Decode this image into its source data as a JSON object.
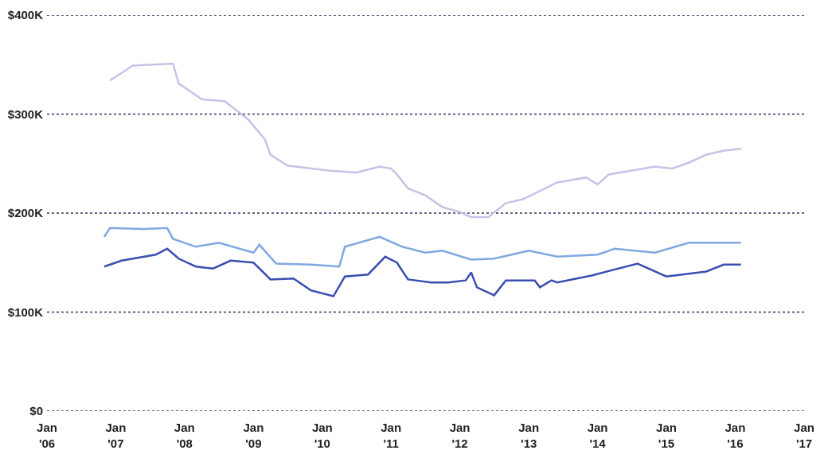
{
  "chart_data": {
    "type": "line",
    "series": [
      {
        "color": "#c4c4e6",
        "x": [
          "2006-12",
          "2007-03",
          "2007-04",
          "2007-11",
          "2007-12",
          "2008-04",
          "2008-08",
          "2008-12",
          "2009-03",
          "2009-04",
          "2009-07",
          "2010-02",
          "2010-07",
          "2010-11",
          "2011-01",
          "2011-02",
          "2011-04",
          "2011-07",
          "2011-10",
          "2012-01",
          "2012-03",
          "2012-06",
          "2012-09",
          "2012-12",
          "2013-06",
          "2013-11",
          "2014-01",
          "2014-03",
          "2014-08",
          "2014-11",
          "2015-02",
          "2015-05",
          "2015-08",
          "2015-11",
          "2016-02"
        ],
        "values": [
          334,
          345,
          349,
          351,
          331,
          315,
          313,
          295,
          275,
          259,
          248,
          243,
          241,
          247,
          245,
          239,
          225,
          218,
          206,
          201,
          196,
          196,
          210,
          214,
          231,
          236,
          229,
          239,
          244,
          247,
          245,
          251,
          259,
          263,
          265
        ]
      },
      {
        "color": "#7fa8e0",
        "x": [
          "2006-11",
          "2006-12",
          "2007-06",
          "2007-10",
          "2007-11",
          "2008-03",
          "2008-07",
          "2009-01",
          "2009-02",
          "2009-05",
          "2009-11",
          "2010-04",
          "2010-05",
          "2010-11",
          "2011-03",
          "2011-07",
          "2011-10",
          "2012-03",
          "2012-07",
          "2013-01",
          "2013-06",
          "2014-01",
          "2014-04",
          "2014-11",
          "2015-05",
          "2016-02"
        ],
        "values": [
          176,
          185,
          184,
          185,
          174,
          166,
          170,
          160,
          168,
          149,
          148,
          146,
          166,
          176,
          166,
          160,
          162,
          153,
          154,
          162,
          156,
          158,
          164,
          160,
          170,
          170
        ]
      },
      {
        "color": "#3a4fb0",
        "x": [
          "2006-11",
          "2007-02",
          "2007-08",
          "2007-10",
          "2007-12",
          "2008-03",
          "2008-06",
          "2008-09",
          "2009-01",
          "2009-04",
          "2009-08",
          "2009-11",
          "2010-03",
          "2010-05",
          "2010-09",
          "2010-12",
          "2011-02",
          "2011-04",
          "2011-08",
          "2011-11",
          "2012-02",
          "2012-03",
          "2012-04",
          "2012-07",
          "2012-09",
          "2013-02",
          "2013-03",
          "2013-05",
          "2013-06",
          "2013-12",
          "2014-08",
          "2015-01",
          "2015-08",
          "2015-11",
          "2016-02"
        ],
        "values": [
          146,
          152,
          158,
          164,
          154,
          146,
          144,
          152,
          150,
          133,
          134,
          122,
          116,
          136,
          138,
          156,
          150,
          133,
          130,
          130,
          132,
          140,
          125,
          117,
          132,
          132,
          125,
          132,
          130,
          137,
          149,
          136,
          141,
          148,
          148
        ]
      }
    ],
    "xlim": [
      "2006-01",
      "2017-01"
    ],
    "xticks": [
      {
        "value": "2006-01",
        "label": "Jan\n'06"
      },
      {
        "value": "2007-01",
        "label": "Jan\n'07"
      },
      {
        "value": "2008-01",
        "label": "Jan\n'08"
      },
      {
        "value": "2009-01",
        "label": "Jan\n'09"
      },
      {
        "value": "2010-01",
        "label": "Jan\n'10"
      },
      {
        "value": "2011-01",
        "label": "Jan\n'11"
      },
      {
        "value": "2012-01",
        "label": "Jan\n'12"
      },
      {
        "value": "2013-01",
        "label": "Jan\n'13"
      },
      {
        "value": "2014-01",
        "label": "Jan\n'14"
      },
      {
        "value": "2015-01",
        "label": "Jan\n'15"
      },
      {
        "value": "2016-01",
        "label": "Jan\n'16"
      },
      {
        "value": "2017-01",
        "label": "Jan\n'17"
      }
    ],
    "ylim": [
      0,
      400
    ],
    "yticks": [
      {
        "value": 0,
        "label": "$0"
      },
      {
        "value": 100,
        "label": "$100K"
      },
      {
        "value": 200,
        "label": "$200K"
      },
      {
        "value": 300,
        "label": "$300K"
      },
      {
        "value": 400,
        "label": "$400K"
      }
    ],
    "grid": "y",
    "marker": "none",
    "line_style": "solid"
  }
}
